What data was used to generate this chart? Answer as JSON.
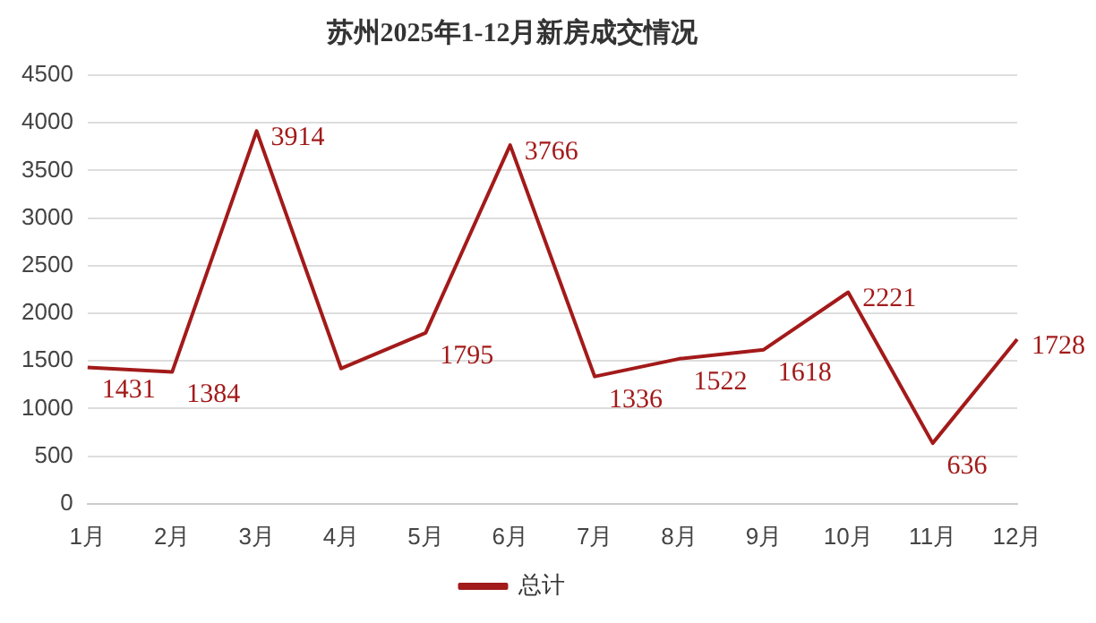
{
  "chart_data": {
    "type": "line",
    "title": "苏州2025年1-12月新房成交情况",
    "categories": [
      "1月",
      "2月",
      "3月",
      "4月",
      "5月",
      "6月",
      "7月",
      "8月",
      "9月",
      "10月",
      "11月",
      "12月"
    ],
    "series": [
      {
        "name": "总计",
        "color": "#a31a1a",
        "values": [
          1431,
          1384,
          3914,
          1420,
          1795,
          3766,
          1336,
          1522,
          1618,
          2221,
          636,
          1728
        ],
        "value_labels": [
          "1431",
          "1384",
          "3914",
          null,
          "1795",
          "3766",
          "1336",
          "1522",
          "1618",
          "2221",
          "636",
          "1728"
        ]
      }
    ],
    "ylim": [
      0,
      4500
    ],
    "yticks": [
      0,
      500,
      1000,
      1500,
      2000,
      2500,
      3000,
      3500,
      4000,
      4500
    ],
    "grid": "y",
    "legend": "bottom",
    "marker": "none"
  }
}
